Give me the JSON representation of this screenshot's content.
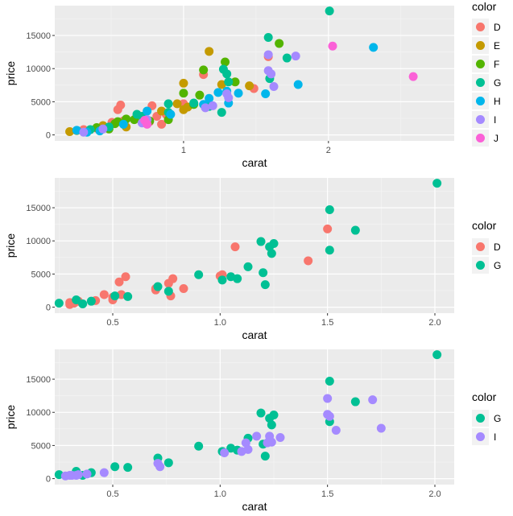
{
  "chart_data": [
    {
      "type": "scatter",
      "title": "",
      "xlabel": "carat",
      "ylabel": "price",
      "x_scale": "log10",
      "xlim": [
        0.54,
        3.65
      ],
      "ylim": [
        -900,
        19500
      ],
      "x_ticks": [
        {
          "value": 1,
          "label": "1"
        },
        {
          "value": 2,
          "label": "2"
        }
      ],
      "y_ticks": [
        {
          "value": 0,
          "label": "0"
        },
        {
          "value": 5000,
          "label": "5000"
        },
        {
          "value": 10000,
          "label": "10000"
        },
        {
          "value": 15000,
          "label": "15000"
        }
      ],
      "grid": true,
      "legend": {
        "title": "color",
        "placement": "right"
      },
      "series": [
        {
          "name": "D",
          "color": "#F8766D",
          "points": [
            [
              0.62,
              800
            ],
            [
              0.66,
              1000
            ],
            [
              0.71,
              1900
            ],
            [
              0.73,
              3800
            ],
            [
              0.74,
              4500
            ],
            [
              0.75,
              2100
            ],
            [
              0.85,
              2000
            ],
            [
              0.86,
              4400
            ],
            [
              0.88,
              2800
            ],
            [
              0.9,
              1600
            ],
            [
              0.92,
              3100
            ],
            [
              1.0,
              4700
            ],
            [
              1.1,
              9100
            ],
            [
              1.4,
              7000
            ],
            [
              1.5,
              11800
            ]
          ]
        },
        {
          "name": "E",
          "color": "#C49A00",
          "points": [
            [
              0.58,
              500
            ],
            [
              0.6,
              650
            ],
            [
              0.68,
              1400
            ],
            [
              0.76,
              1200
            ],
            [
              0.8,
              2500
            ],
            [
              0.9,
              3600
            ],
            [
              0.97,
              4700
            ],
            [
              1.0,
              7800
            ],
            [
              1.0,
              3800
            ],
            [
              1.02,
              4200
            ],
            [
              1.13,
              12600
            ],
            [
              1.2,
              7600
            ],
            [
              1.37,
              7400
            ]
          ]
        },
        {
          "name": "F",
          "color": "#53B400",
          "points": [
            [
              0.66,
              1100
            ],
            [
              0.7,
              900
            ],
            [
              0.72,
              1700
            ],
            [
              0.73,
              2000
            ],
            [
              0.76,
              2400
            ],
            [
              0.79,
              2300
            ],
            [
              0.85,
              2100
            ],
            [
              0.93,
              2300
            ],
            [
              1.0,
              6300
            ],
            [
              1.05,
              4600
            ],
            [
              1.08,
              6000
            ],
            [
              1.1,
              9800
            ],
            [
              1.22,
              11000
            ],
            [
              1.28,
              8000
            ],
            [
              1.58,
              13800
            ]
          ]
        },
        {
          "name": "G",
          "color": "#00C094",
          "points": [
            [
              0.64,
              800
            ],
            [
              0.7,
              1200
            ],
            [
              0.8,
              3100
            ],
            [
              0.82,
              2800
            ],
            [
              0.93,
              4700
            ],
            [
              0.93,
              3400
            ],
            [
              1.05,
              4800
            ],
            [
              1.13,
              4300
            ],
            [
              1.2,
              3400
            ],
            [
              1.21,
              9900
            ],
            [
              1.23,
              9200
            ],
            [
              1.24,
              8000
            ],
            [
              1.5,
              14700
            ],
            [
              1.51,
              8500
            ],
            [
              1.64,
              11600
            ],
            [
              2.01,
              18700
            ]
          ]
        },
        {
          "name": "H",
          "color": "#00B6EB",
          "points": [
            [
              0.6,
              700
            ],
            [
              0.63,
              400
            ],
            [
              0.67,
              600
            ],
            [
              0.75,
              1600
            ],
            [
              0.84,
              3600
            ],
            [
              0.94,
              3100
            ],
            [
              1.1,
              4600
            ],
            [
              1.13,
              5500
            ],
            [
              1.18,
              6400
            ],
            [
              1.23,
              6600
            ],
            [
              1.24,
              4800
            ],
            [
              1.3,
              6300
            ],
            [
              1.48,
              6200
            ],
            [
              1.73,
              7600
            ],
            [
              2.48,
              13200
            ]
          ]
        },
        {
          "name": "I",
          "color": "#A58AFF",
          "points": [
            [
              0.62,
              400
            ],
            [
              0.68,
              900
            ],
            [
              0.82,
              1800
            ],
            [
              0.84,
              2300
            ],
            [
              1.11,
              4100
            ],
            [
              1.15,
              4400
            ],
            [
              1.23,
              6200
            ],
            [
              1.24,
              5600
            ],
            [
              1.5,
              12100
            ],
            [
              1.5,
              9700
            ],
            [
              1.52,
              9200
            ],
            [
              1.54,
              7300
            ],
            [
              1.71,
              11900
            ]
          ]
        },
        {
          "name": "J",
          "color": "#FB61D7",
          "points": [
            [
              0.83,
              2200
            ],
            [
              0.84,
              1600
            ],
            [
              2.04,
              13400
            ],
            [
              3.0,
              8800
            ]
          ]
        }
      ]
    },
    {
      "type": "scatter",
      "title": "",
      "xlabel": "carat",
      "ylabel": "price",
      "x_scale": "linear",
      "xlim": [
        0.23,
        2.09
      ],
      "ylim": [
        -900,
        19500
      ],
      "x_ticks": [
        {
          "value": 0.5,
          "label": "0.5"
        },
        {
          "value": 1.0,
          "label": "1.0"
        },
        {
          "value": 1.5,
          "label": "1.5"
        },
        {
          "value": 2.0,
          "label": "2.0"
        }
      ],
      "y_ticks": [
        {
          "value": 0,
          "label": "0"
        },
        {
          "value": 5000,
          "label": "5000"
        },
        {
          "value": 10000,
          "label": "10000"
        },
        {
          "value": 15000,
          "label": "15000"
        }
      ],
      "grid": true,
      "legend": {
        "title": "color",
        "placement": "right"
      },
      "series": [
        {
          "name": "D",
          "color": "#F8766D",
          "points": [
            [
              0.3,
              700
            ],
            [
              0.3,
              400
            ],
            [
              0.32,
              600
            ],
            [
              0.34,
              900
            ],
            [
              0.42,
              1000
            ],
            [
              0.46,
              1900
            ],
            [
              0.5,
              1100
            ],
            [
              0.5,
              1500
            ],
            [
              0.53,
              3800
            ],
            [
              0.54,
              1900
            ],
            [
              0.56,
              4600
            ],
            [
              0.7,
              2600
            ],
            [
              0.7,
              2800
            ],
            [
              0.76,
              3600
            ],
            [
              0.77,
              1700
            ],
            [
              0.78,
              4300
            ],
            [
              0.83,
              2800
            ],
            [
              1.0,
              4700
            ],
            [
              1.01,
              4900
            ],
            [
              1.07,
              9100
            ],
            [
              1.41,
              7000
            ],
            [
              1.5,
              11800
            ]
          ]
        },
        {
          "name": "G",
          "color": "#00C094",
          "points": [
            [
              0.25,
              600
            ],
            [
              0.33,
              1100
            ],
            [
              0.36,
              500
            ],
            [
              0.4,
              900
            ],
            [
              0.51,
              1700
            ],
            [
              0.57,
              1600
            ],
            [
              0.71,
              3100
            ],
            [
              0.76,
              2400
            ],
            [
              0.9,
              4900
            ],
            [
              1.01,
              4100
            ],
            [
              1.05,
              4600
            ],
            [
              1.08,
              4300
            ],
            [
              1.13,
              6100
            ],
            [
              1.19,
              9900
            ],
            [
              1.2,
              5200
            ],
            [
              1.21,
              3400
            ],
            [
              1.23,
              9100
            ],
            [
              1.24,
              8100
            ],
            [
              1.25,
              9600
            ],
            [
              1.51,
              14700
            ],
            [
              1.51,
              8600
            ],
            [
              1.63,
              11600
            ],
            [
              2.01,
              18700
            ]
          ]
        }
      ]
    },
    {
      "type": "scatter",
      "title": "",
      "xlabel": "carat",
      "ylabel": "price",
      "x_scale": "linear",
      "xlim": [
        0.23,
        2.09
      ],
      "ylim": [
        -900,
        19500
      ],
      "x_ticks": [
        {
          "value": 0.5,
          "label": "0.5"
        },
        {
          "value": 1.0,
          "label": "1.0"
        },
        {
          "value": 1.5,
          "label": "1.5"
        },
        {
          "value": 2.0,
          "label": "2.0"
        }
      ],
      "y_ticks": [
        {
          "value": 0,
          "label": "0"
        },
        {
          "value": 5000,
          "label": "5000"
        },
        {
          "value": 10000,
          "label": "10000"
        },
        {
          "value": 15000,
          "label": "15000"
        }
      ],
      "grid": true,
      "legend": {
        "title": "color",
        "placement": "right"
      },
      "series": [
        {
          "name": "G",
          "color": "#00C094",
          "points": [
            [
              0.25,
              600
            ],
            [
              0.33,
              1100
            ],
            [
              0.36,
              500
            ],
            [
              0.4,
              900
            ],
            [
              0.51,
              1800
            ],
            [
              0.57,
              1700
            ],
            [
              0.71,
              3100
            ],
            [
              0.76,
              2400
            ],
            [
              0.9,
              4900
            ],
            [
              1.01,
              4100
            ],
            [
              1.05,
              4600
            ],
            [
              1.08,
              4300
            ],
            [
              1.13,
              6100
            ],
            [
              1.19,
              9900
            ],
            [
              1.2,
              5200
            ],
            [
              1.21,
              3400
            ],
            [
              1.23,
              9100
            ],
            [
              1.24,
              8100
            ],
            [
              1.25,
              9600
            ],
            [
              1.51,
              14700
            ],
            [
              1.51,
              8600
            ],
            [
              1.63,
              11600
            ],
            [
              2.01,
              18700
            ]
          ]
        },
        {
          "name": "I",
          "color": "#A58AFF",
          "points": [
            [
              0.28,
              400
            ],
            [
              0.3,
              500
            ],
            [
              0.31,
              500
            ],
            [
              0.33,
              500
            ],
            [
              0.34,
              600
            ],
            [
              0.38,
              700
            ],
            [
              0.46,
              900
            ],
            [
              0.71,
              2300
            ],
            [
              0.72,
              1800
            ],
            [
              1.02,
              3900
            ],
            [
              1.1,
              4100
            ],
            [
              1.12,
              5400
            ],
            [
              1.13,
              4400
            ],
            [
              1.17,
              6400
            ],
            [
              1.22,
              5400
            ],
            [
              1.23,
              6400
            ],
            [
              1.24,
              5500
            ],
            [
              1.28,
              6200
            ],
            [
              1.5,
              12100
            ],
            [
              1.5,
              9700
            ],
            [
              1.51,
              9400
            ],
            [
              1.54,
              7300
            ],
            [
              1.71,
              11900
            ],
            [
              1.75,
              7600
            ]
          ]
        }
      ]
    }
  ]
}
